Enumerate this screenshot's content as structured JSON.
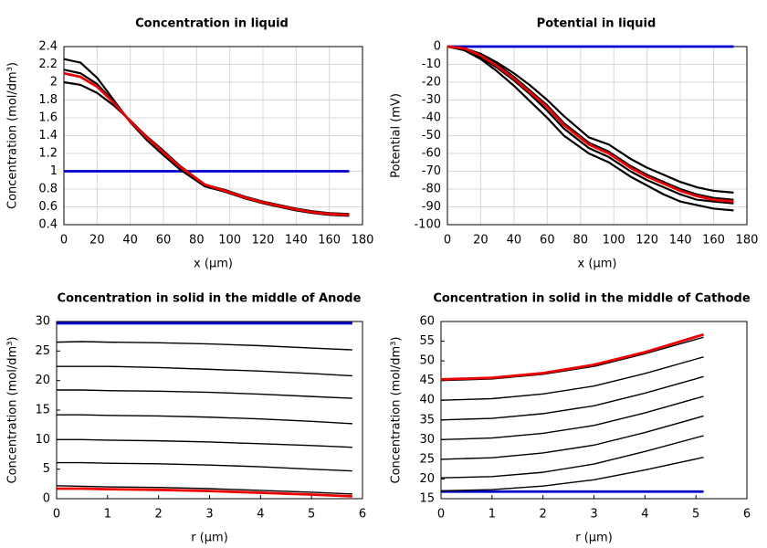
{
  "chart_data": [
    {
      "type": "line",
      "title": "Concentration in liquid",
      "xlabel": "x (µm)",
      "ylabel": "Concentration (mol/dm³)",
      "x": [
        0,
        10,
        20,
        30,
        40,
        50,
        60,
        70,
        85,
        97,
        110,
        120,
        130,
        140,
        150,
        160,
        172
      ],
      "series": [
        {
          "color": "#0000cc",
          "values": [
            1,
            1,
            1,
            1,
            1,
            1,
            1,
            1,
            1,
            1,
            1,
            1,
            1,
            1,
            1,
            1,
            1
          ]
        },
        {
          "color": "#000000",
          "values": [
            2.26,
            2.22,
            2.05,
            1.8,
            1.55,
            1.35,
            1.18,
            1.02,
            0.83,
            0.77,
            0.69,
            0.64,
            0.6,
            0.56,
            0.53,
            0.51,
            0.5
          ]
        },
        {
          "color": "#000000",
          "values": [
            2.14,
            2.1,
            1.98,
            1.78,
            1.56,
            1.37,
            1.2,
            1.04,
            0.84,
            0.78,
            0.7,
            0.65,
            0.61,
            0.57,
            0.54,
            0.52,
            0.51
          ]
        },
        {
          "color": "#000000",
          "values": [
            2.0,
            1.97,
            1.88,
            1.74,
            1.57,
            1.39,
            1.23,
            1.06,
            0.85,
            0.79,
            0.71,
            0.66,
            0.62,
            0.58,
            0.55,
            0.53,
            0.52
          ]
        },
        {
          "color": "#ee0000",
          "values": [
            2.1,
            2.06,
            1.95,
            1.77,
            1.56,
            1.38,
            1.21,
            1.05,
            0.85,
            0.78,
            0.7,
            0.65,
            0.61,
            0.57,
            0.54,
            0.52,
            0.51
          ]
        }
      ],
      "xlim": [
        0,
        180
      ],
      "ylim": [
        0.4,
        2.4
      ],
      "xticks": [
        0,
        20,
        40,
        60,
        80,
        100,
        120,
        140,
        160,
        180
      ],
      "yticks": [
        0.4,
        0.6,
        0.8,
        1,
        1.2,
        1.4,
        1.6,
        1.8,
        2,
        2.2,
        2.4
      ],
      "grid": true
    },
    {
      "type": "line",
      "title": "Potential in liquid",
      "xlabel": "x (µm)",
      "ylabel": "Potential (mV)",
      "x": [
        0,
        10,
        20,
        30,
        40,
        50,
        60,
        70,
        85,
        97,
        110,
        120,
        130,
        140,
        150,
        160,
        172
      ],
      "series": [
        {
          "color": "#0000cc",
          "values": [
            0,
            0,
            0,
            0,
            0,
            0,
            0,
            0,
            0,
            0,
            0,
            0,
            0,
            0,
            0,
            0,
            0
          ]
        },
        {
          "color": "#000000",
          "values": [
            0,
            -1,
            -4,
            -9,
            -15,
            -22,
            -30,
            -39,
            -51,
            -55,
            -63,
            -68,
            -72,
            -76,
            -79,
            -81,
            -82
          ]
        },
        {
          "color": "#000000",
          "values": [
            0,
            -1,
            -5,
            -10,
            -17,
            -25,
            -33,
            -43,
            -54,
            -59,
            -67,
            -72,
            -76,
            -80,
            -83,
            -85,
            -86
          ]
        },
        {
          "color": "#000000",
          "values": [
            0,
            -1,
            -6,
            -12,
            -19,
            -27,
            -36,
            -46,
            -57,
            -62,
            -70,
            -75,
            -79,
            -83,
            -86,
            -87,
            -88
          ]
        },
        {
          "color": "#000000",
          "values": [
            0,
            -2,
            -7,
            -14,
            -22,
            -31,
            -40,
            -50,
            -60,
            -65,
            -73,
            -78,
            -83,
            -87,
            -89,
            -91,
            -92
          ]
        },
        {
          "color": "#ee0000",
          "values": [
            0,
            -1,
            -5,
            -11,
            -18,
            -26,
            -34,
            -44,
            -55,
            -60,
            -68,
            -73,
            -77,
            -81,
            -84,
            -86,
            -87
          ]
        }
      ],
      "xlim": [
        0,
        180
      ],
      "ylim": [
        -100,
        0
      ],
      "xticks": [
        0,
        20,
        40,
        60,
        80,
        100,
        120,
        140,
        160,
        180
      ],
      "yticks": [
        0,
        -10,
        -20,
        -30,
        -40,
        -50,
        -60,
        -70,
        -80,
        -90,
        -100
      ],
      "grid": true
    },
    {
      "type": "line",
      "title": "Concentration in solid in the middle of Anode",
      "xlabel": "r (µm)",
      "ylabel": "Concentration (mol/dm³)",
      "x": [
        0,
        0.5,
        1,
        2,
        3,
        4,
        5,
        5.8
      ],
      "series": [
        {
          "color": "#0000cc",
          "values": [
            29.7,
            29.7,
            29.7,
            29.7,
            29.7,
            29.7,
            29.7,
            29.7
          ]
        },
        {
          "color": "#000000",
          "values": [
            26.5,
            26.6,
            26.5,
            26.4,
            26.2,
            25.9,
            25.5,
            25.2
          ]
        },
        {
          "color": "#000000",
          "values": [
            22.4,
            22.4,
            22.4,
            22.2,
            21.9,
            21.6,
            21.2,
            20.8
          ]
        },
        {
          "color": "#000000",
          "values": [
            18.4,
            18.4,
            18.3,
            18.2,
            18.0,
            17.7,
            17.3,
            17.0
          ]
        },
        {
          "color": "#000000",
          "values": [
            14.2,
            14.2,
            14.1,
            14.0,
            13.8,
            13.5,
            13.1,
            12.7
          ]
        },
        {
          "color": "#000000",
          "values": [
            10.0,
            10.0,
            9.9,
            9.8,
            9.6,
            9.3,
            9.0,
            8.7
          ]
        },
        {
          "color": "#000000",
          "values": [
            6.1,
            6.1,
            6.0,
            5.9,
            5.7,
            5.4,
            5.0,
            4.7
          ]
        },
        {
          "color": "#000000",
          "values": [
            2.2,
            2.1,
            2.0,
            1.9,
            1.7,
            1.4,
            1.1,
            0.8
          ]
        },
        {
          "color": "#ee0000",
          "values": [
            1.7,
            1.7,
            1.6,
            1.5,
            1.3,
            1.0,
            0.7,
            0.4
          ]
        }
      ],
      "xlim": [
        0,
        6
      ],
      "ylim": [
        0,
        30
      ],
      "xticks": [
        0,
        1,
        2,
        3,
        4,
        5,
        6
      ],
      "yticks": [
        0,
        5,
        10,
        15,
        20,
        25,
        30
      ],
      "grid": false
    },
    {
      "type": "line",
      "title": "Concentration in solid in the middle of Cathode",
      "xlabel": "r (µm)",
      "ylabel": "Concentration (mol/dm³)",
      "x": [
        0,
        1,
        2,
        3,
        4,
        5.15
      ],
      "series": [
        {
          "color": "#0000cc",
          "values": [
            16.8,
            16.8,
            16.8,
            16.8,
            16.8,
            16.8
          ]
        },
        {
          "color": "#000000",
          "values": [
            17,
            17.3,
            18.2,
            19.8,
            22.3,
            25.5
          ]
        },
        {
          "color": "#000000",
          "values": [
            20.3,
            20.6,
            21.7,
            23.8,
            27,
            31
          ]
        },
        {
          "color": "#000000",
          "values": [
            25,
            25.4,
            26.6,
            28.6,
            31.8,
            36
          ]
        },
        {
          "color": "#000000",
          "values": [
            30,
            30.4,
            31.6,
            33.6,
            36.8,
            41
          ]
        },
        {
          "color": "#000000",
          "values": [
            35,
            35.4,
            36.6,
            38.6,
            41.8,
            46
          ]
        },
        {
          "color": "#000000",
          "values": [
            40,
            40.4,
            41.6,
            43.6,
            46.8,
            51
          ]
        },
        {
          "color": "#000000",
          "values": [
            45,
            45.4,
            46.6,
            48.6,
            51.8,
            56
          ]
        },
        {
          "color": "#ee0000",
          "values": [
            45.3,
            45.7,
            46.9,
            49,
            52.2,
            56.7
          ]
        }
      ],
      "xlim": [
        0,
        6
      ],
      "ylim": [
        15,
        60
      ],
      "xticks": [
        0,
        1,
        2,
        3,
        4,
        5,
        6
      ],
      "yticks": [
        15,
        20,
        25,
        30,
        35,
        40,
        45,
        50,
        55,
        60
      ],
      "grid": false
    }
  ]
}
